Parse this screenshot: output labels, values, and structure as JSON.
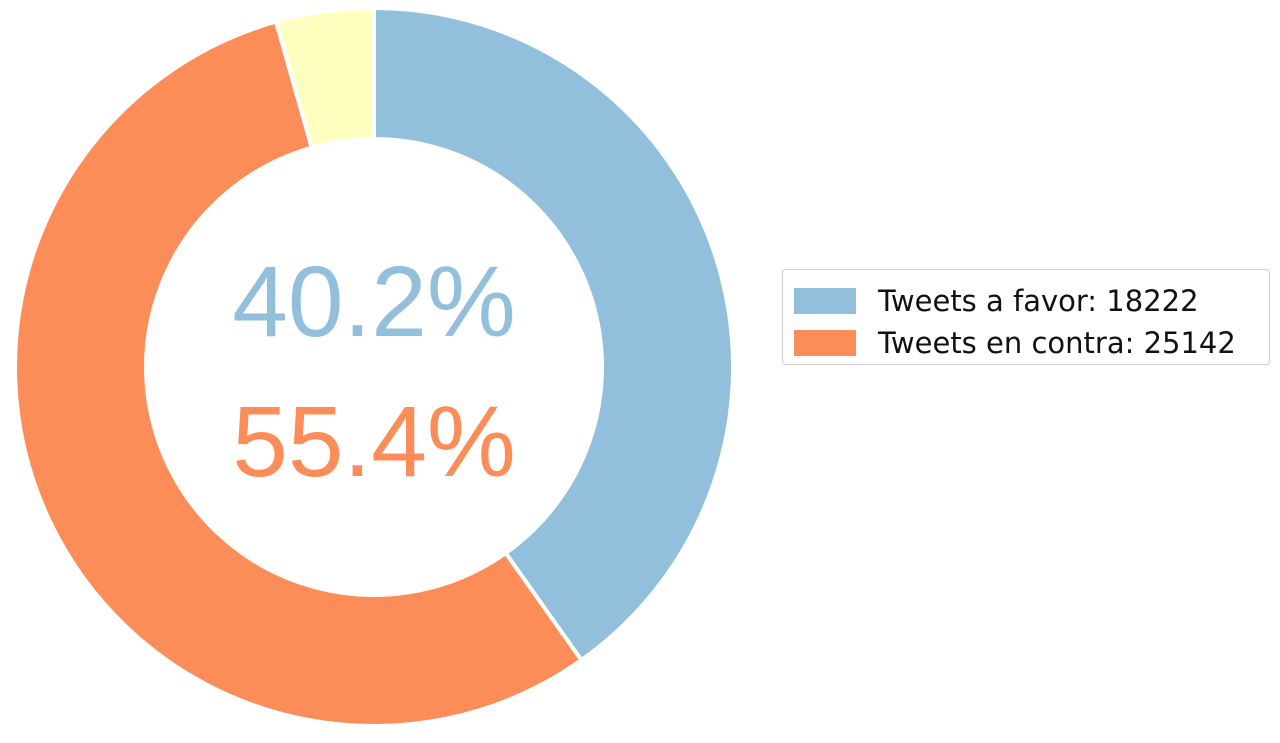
{
  "chart_data": {
    "type": "pie",
    "variant": "donut",
    "slices": [
      {
        "label": "Tweets a favor",
        "value": 18222,
        "percent": 40.2,
        "color": "#92bfdb"
      },
      {
        "label": "Tweets en contra",
        "value": 25142,
        "percent": 55.4,
        "color": "#fc8d59"
      },
      {
        "label": "",
        "value": null,
        "percent": 4.4,
        "color": "#ffffbf"
      }
    ],
    "center_labels": [
      {
        "text": "40.2%",
        "color": "#92bfdb"
      },
      {
        "text": "55.4%",
        "color": "#fc8d59"
      }
    ],
    "legend": {
      "placement": "right",
      "entries": [
        {
          "text": "Tweets a favor: 18222",
          "color": "#92bfdb"
        },
        {
          "text": "Tweets en contra: 25142",
          "color": "#fc8d59"
        }
      ]
    },
    "start_angle": "top",
    "direction": "clockwise"
  }
}
